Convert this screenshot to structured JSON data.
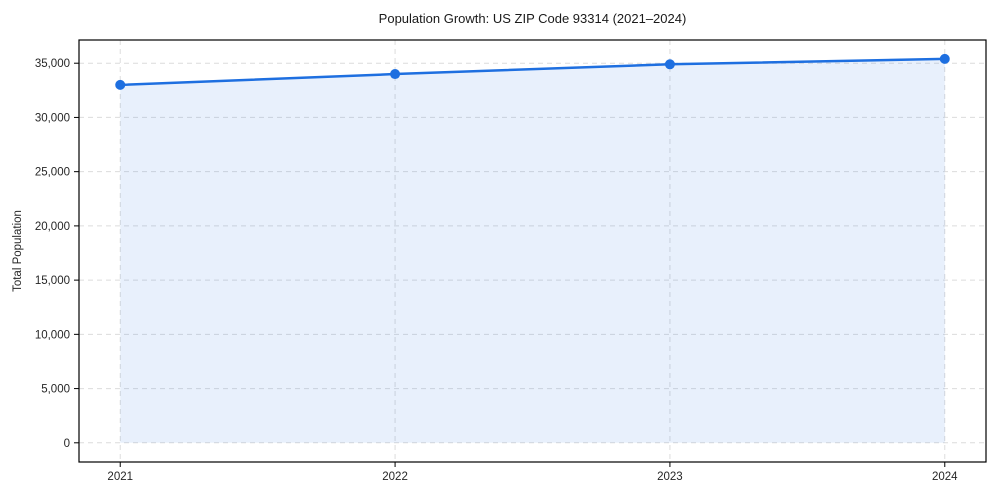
{
  "chart_data": {
    "type": "line",
    "title": "Population Growth: US ZIP Code 93314 (2021–2024)",
    "xlabel": "",
    "ylabel": "Total Population",
    "x": [
      2021,
      2022,
      2023,
      2024
    ],
    "series": [
      {
        "name": "Total Population",
        "values": [
          33000,
          34000,
          34900,
          35400
        ]
      }
    ],
    "xticks": {
      "values": [
        2021,
        2022,
        2023,
        2024
      ],
      "labels": [
        "2021",
        "2022",
        "2023",
        "2024"
      ]
    },
    "yticks": {
      "values": [
        0,
        5000,
        10000,
        15000,
        20000,
        25000,
        30000,
        35000
      ],
      "labels": [
        "0",
        "5,000",
        "10,000",
        "15,000",
        "20,000",
        "25,000",
        "30,000",
        "35,000"
      ]
    },
    "xlim": [
      2020.85,
      2024.15
    ],
    "ylim": [
      -1770,
      37140
    ],
    "grid": true,
    "legend": false,
    "style": {
      "line_color": "#1e6fe0",
      "line_width": 2.5,
      "marker": "circle",
      "marker_radius": 5,
      "area_fill": true,
      "fill_opacity": 0.1,
      "grid_color": "#dcdcdc",
      "grid_dash": "5 4",
      "spine_color": "#000000",
      "tick_color": "#000000",
      "text_color": "#262626",
      "background": "#ffffff"
    }
  }
}
